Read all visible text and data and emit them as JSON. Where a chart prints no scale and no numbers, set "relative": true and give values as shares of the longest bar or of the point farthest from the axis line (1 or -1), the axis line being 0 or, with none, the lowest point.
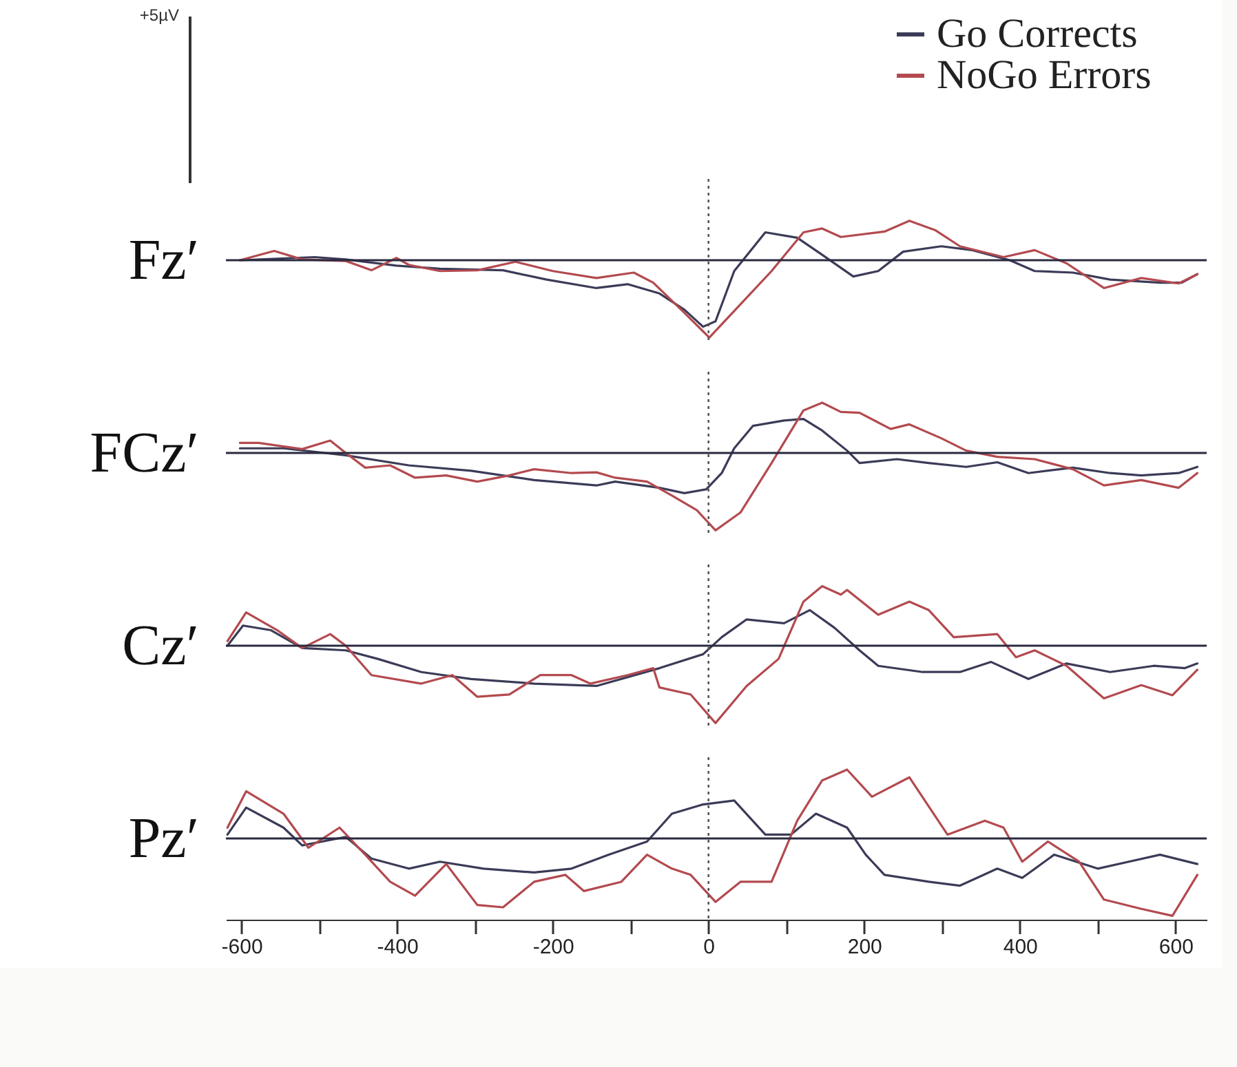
{
  "chart_data": [
    {
      "type": "line",
      "relative": true,
      "ylabel": "Fz′",
      "legend": "top right",
      "annotations": [
        "+5µV"
      ],
      "xlim": [
        -620,
        640
      ],
      "tick_labels": false,
      "ref_lines": [
        {
          "axis": "x",
          "value": 0,
          "line_style": "dotted"
        }
      ],
      "series": [
        {
          "name": "Go Corrects",
          "color": "#3b3b58",
          "x": [
            -602,
            -506,
            -466,
            -401,
            -345,
            -264,
            -208,
            -144,
            -104,
            -63,
            -31,
            -7,
            9,
            33,
            73,
            114,
            146,
            186,
            218,
            250,
            299,
            339,
            387,
            419,
            468,
            516,
            580,
            608,
            628
          ],
          "values": [
            0,
            0.04,
            0.01,
            -0.07,
            -0.11,
            -0.13,
            -0.25,
            -0.36,
            -0.31,
            -0.43,
            -0.64,
            -0.86,
            -0.79,
            -0.14,
            0.36,
            0.29,
            0.07,
            -0.21,
            -0.14,
            0.11,
            0.18,
            0.13,
            0,
            -0.14,
            -0.16,
            -0.25,
            -0.29,
            -0.29,
            -0.18
          ]
        },
        {
          "name": "NoGo Errors",
          "color": "#b34a4f",
          "x": [
            -602,
            -558,
            -522,
            -466,
            -433,
            -401,
            -385,
            -345,
            -297,
            -248,
            -200,
            -144,
            -96,
            -71,
            -31,
            1,
            41,
            81,
            122,
            146,
            170,
            226,
            258,
            291,
            323,
            379,
            419,
            460,
            508,
            556,
            604,
            628
          ],
          "values": [
            0,
            0.12,
            0.01,
            -0.01,
            -0.13,
            0.03,
            -0.06,
            -0.14,
            -0.13,
            -0.02,
            -0.14,
            -0.23,
            -0.16,
            -0.29,
            -0.68,
            -1,
            -0.57,
            -0.14,
            0.36,
            0.41,
            0.3,
            0.37,
            0.51,
            0.39,
            0.18,
            0.04,
            0.13,
            -0.04,
            -0.36,
            -0.23,
            -0.3,
            -0.18
          ]
        }
      ]
    },
    {
      "type": "line",
      "relative": true,
      "ylabel": "FCz′",
      "xlim": [
        -620,
        640
      ],
      "tick_labels": false,
      "ref_lines": [
        {
          "axis": "x",
          "value": 0,
          "line_style": "dotted"
        }
      ],
      "series": [
        {
          "color": "#3b3b58",
          "x": [
            -602,
            -546,
            -466,
            -385,
            -305,
            -224,
            -144,
            -120,
            -63,
            -31,
            -3,
            17,
            33,
            57,
            97,
            122,
            146,
            178,
            194,
            242,
            283,
            331,
            371,
            411,
            468,
            516,
            556,
            604,
            628
          ],
          "values": [
            0.06,
            0.06,
            -0.03,
            -0.16,
            -0.23,
            -0.35,
            -0.42,
            -0.37,
            -0.45,
            -0.52,
            -0.47,
            -0.26,
            0.06,
            0.35,
            0.42,
            0.44,
            0.29,
            0.03,
            -0.13,
            -0.08,
            -0.13,
            -0.18,
            -0.12,
            -0.26,
            -0.19,
            -0.26,
            -0.29,
            -0.26,
            -0.18
          ]
        },
        {
          "color": "#b34a4f",
          "x": [
            -602,
            -578,
            -522,
            -486,
            -466,
            -441,
            -409,
            -377,
            -337,
            -297,
            -256,
            -224,
            -176,
            -144,
            -120,
            -79,
            -47,
            -15,
            9,
            41,
            81,
            122,
            146,
            170,
            194,
            234,
            258,
            299,
            331,
            371,
            419,
            468,
            508,
            556,
            604,
            628
          ],
          "values": [
            0.13,
            0.13,
            0.05,
            0.16,
            0,
            -0.19,
            -0.16,
            -0.32,
            -0.29,
            -0.37,
            -0.29,
            -0.21,
            -0.26,
            -0.25,
            -0.32,
            -0.37,
            -0.55,
            -0.74,
            -1,
            -0.77,
            -0.13,
            0.55,
            0.65,
            0.53,
            0.52,
            0.31,
            0.37,
            0.19,
            0.03,
            -0.05,
            -0.08,
            -0.21,
            -0.42,
            -0.35,
            -0.45,
            -0.26
          ]
        }
      ]
    },
    {
      "type": "line",
      "relative": true,
      "ylabel": "Cz′",
      "xlim": [
        -620,
        640
      ],
      "tick_labels": false,
      "ref_lines": [
        {
          "axis": "x",
          "value": 0,
          "line_style": "dotted"
        }
      ],
      "series": [
        {
          "color": "#3b3b58",
          "x": [
            -618,
            -598,
            -562,
            -522,
            -466,
            -425,
            -369,
            -305,
            -224,
            -144,
            -63,
            -7,
            17,
            49,
            97,
            130,
            162,
            194,
            218,
            275,
            323,
            363,
            411,
            460,
            516,
            572,
            612,
            628
          ],
          "values": [
            0,
            0.26,
            0.2,
            -0.03,
            -0.06,
            -0.17,
            -0.34,
            -0.43,
            -0.49,
            -0.52,
            -0.29,
            -0.11,
            0.11,
            0.34,
            0.29,
            0.46,
            0.23,
            -0.06,
            -0.26,
            -0.34,
            -0.34,
            -0.21,
            -0.43,
            -0.23,
            -0.34,
            -0.26,
            -0.29,
            -0.23
          ]
        },
        {
          "color": "#b34a4f",
          "x": [
            -618,
            -594,
            -554,
            -522,
            -486,
            -466,
            -433,
            -369,
            -329,
            -297,
            -256,
            -216,
            -176,
            -152,
            -104,
            -71,
            -63,
            -23,
            9,
            49,
            90,
            122,
            146,
            170,
            178,
            218,
            258,
            283,
            315,
            371,
            395,
            419,
            460,
            508,
            556,
            596,
            628
          ],
          "values": [
            0.06,
            0.43,
            0.2,
            -0.03,
            0.15,
            0,
            -0.38,
            -0.49,
            -0.38,
            -0.66,
            -0.63,
            -0.38,
            -0.38,
            -0.49,
            -0.38,
            -0.29,
            -0.54,
            -0.63,
            -1,
            -0.52,
            -0.17,
            0.57,
            0.77,
            0.66,
            0.72,
            0.4,
            0.57,
            0.46,
            0.11,
            0.15,
            -0.15,
            -0.06,
            -0.26,
            -0.68,
            -0.51,
            -0.64,
            -0.31
          ]
        }
      ]
    },
    {
      "type": "line",
      "relative": true,
      "ylabel": "Pz′",
      "xlim": [
        -620,
        640
      ],
      "tick_labels": "x",
      "xticks": [
        -600,
        {
          "value": -500,
          "label": null
        },
        -400,
        {
          "value": -300,
          "label": null
        },
        -200,
        {
          "value": -100,
          "label": null
        },
        0,
        {
          "value": 100,
          "label": null
        },
        200,
        {
          "value": 300,
          "label": null
        },
        400,
        {
          "value": 500,
          "label": null
        },
        600
      ],
      "ref_lines": [
        {
          "axis": "x",
          "value": 0,
          "line_style": "dotted"
        }
      ],
      "series": [
        {
          "color": "#3b3b58",
          "x": [
            -618,
            -594,
            -546,
            -522,
            -466,
            -433,
            -385,
            -345,
            -289,
            -224,
            -176,
            -128,
            -79,
            -47,
            -7,
            33,
            73,
            106,
            138,
            178,
            202,
            226,
            283,
            323,
            371,
            403,
            444,
            500,
            540,
            580,
            628
          ],
          "values": [
            0.05,
            0.4,
            0.14,
            -0.09,
            0.02,
            -0.26,
            -0.39,
            -0.3,
            -0.39,
            -0.44,
            -0.39,
            -0.21,
            -0.04,
            0.32,
            0.44,
            0.49,
            0.05,
            0.05,
            0.32,
            0.14,
            -0.21,
            -0.47,
            -0.56,
            -0.61,
            -0.39,
            -0.51,
            -0.21,
            -0.39,
            -0.3,
            -0.21,
            -0.33
          ]
        },
        {
          "color": "#b34a4f",
          "x": [
            -618,
            -594,
            -546,
            -514,
            -474,
            -441,
            -409,
            -377,
            -337,
            -297,
            -264,
            -224,
            -184,
            -160,
            -112,
            -79,
            -47,
            -23,
            9,
            41,
            81,
            114,
            146,
            178,
            210,
            258,
            307,
            355,
            379,
            403,
            436,
            476,
            508,
            556,
            596,
            628
          ],
          "values": [
            0.14,
            0.61,
            0.32,
            -0.12,
            0.14,
            -0.21,
            -0.56,
            -0.74,
            -0.33,
            -0.86,
            -0.89,
            -0.56,
            -0.47,
            -0.68,
            -0.56,
            -0.21,
            -0.39,
            -0.47,
            -0.82,
            -0.56,
            -0.56,
            0.23,
            0.75,
            0.89,
            0.54,
            0.79,
            0.05,
            0.23,
            0.14,
            -0.3,
            -0.04,
            -0.3,
            -0.79,
            -0.91,
            -1,
            -0.47
          ]
        }
      ]
    }
  ]
}
